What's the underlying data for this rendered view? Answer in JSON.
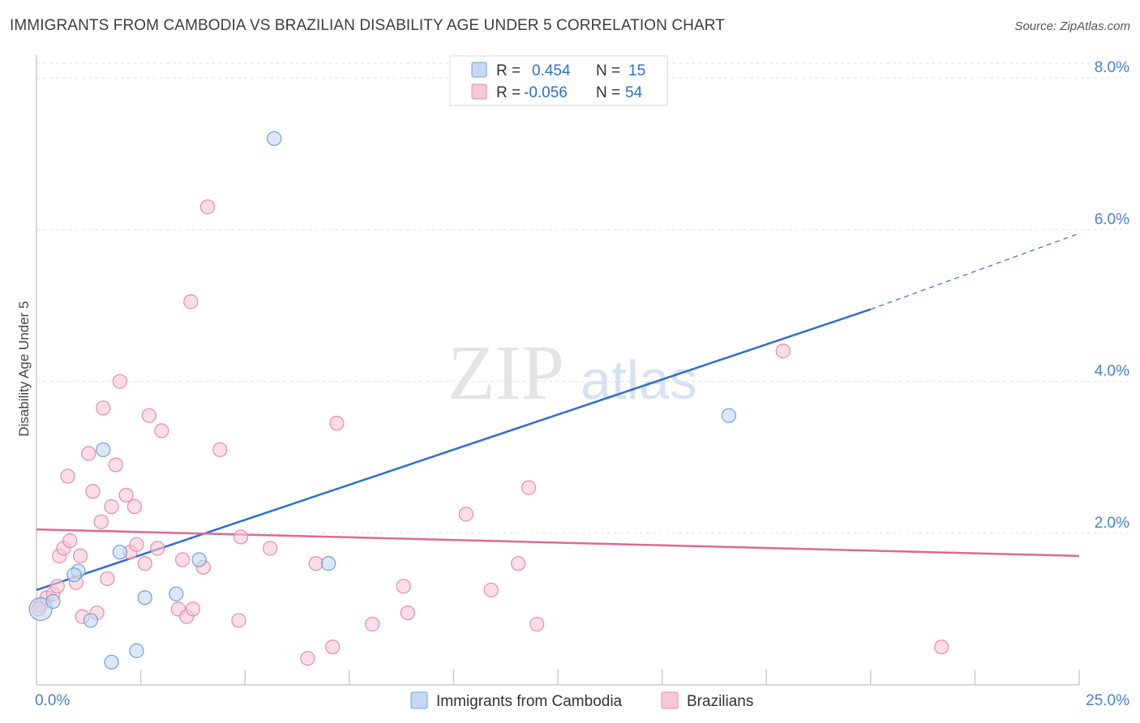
{
  "header": {
    "title": "IMMIGRANTS FROM CAMBODIA VS BRAZILIAN DISABILITY AGE UNDER 5 CORRELATION CHART",
    "source": "Source: ZipAtlas.com"
  },
  "watermark": {
    "zip": "ZIP",
    "atlas": "atlas"
  },
  "stats": {
    "r_label": "R =",
    "n_label": "N =",
    "rows": [
      {
        "r": "0.454",
        "n": "15"
      },
      {
        "r": "-0.056",
        "n": "54"
      }
    ]
  },
  "chart_data": {
    "type": "scatter",
    "title": "IMMIGRANTS FROM CAMBODIA VS BRAZILIAN DISABILITY AGE UNDER 5 CORRELATION CHART",
    "ylabel": "Disability Age Under 5",
    "xlabel": "",
    "xlim": [
      0,
      25
    ],
    "ylim": [
      0,
      8.3
    ],
    "x_tick_labels": [
      {
        "value": 0,
        "label": "0.0%"
      },
      {
        "value": 25,
        "label": "25.0%"
      }
    ],
    "y_ticks": [
      {
        "value": 2,
        "label": "2.0%"
      },
      {
        "value": 4,
        "label": "4.0%"
      },
      {
        "value": 6,
        "label": "6.0%"
      },
      {
        "value": 8,
        "label": "8.0%"
      }
    ],
    "x_minor_ticks": [
      2.5,
      5,
      7.5,
      10,
      12.5,
      15,
      17.5,
      20,
      22.5,
      25
    ],
    "series": [
      {
        "name": "Immigrants from Cambodia",
        "color": "#6fa0dc",
        "fill": "#c5d9f2",
        "points": [
          [
            0.1,
            1.0
          ],
          [
            0.4,
            1.1
          ],
          [
            1.0,
            1.5
          ],
          [
            0.9,
            1.45
          ],
          [
            1.3,
            0.85
          ],
          [
            1.6,
            3.1
          ],
          [
            2.0,
            1.75
          ],
          [
            2.6,
            1.15
          ],
          [
            3.35,
            1.2
          ],
          [
            2.4,
            0.45
          ],
          [
            1.8,
            0.3
          ],
          [
            3.9,
            1.65
          ],
          [
            5.7,
            7.2
          ],
          [
            7.0,
            1.6
          ],
          [
            16.6,
            3.55
          ]
        ],
        "trend": {
          "x0": 0,
          "y0": 1.25,
          "x1": 20,
          "y1": 4.95,
          "dash_to_x": 25,
          "dash_to_y": 5.95,
          "color": "#2c6fd0"
        }
      },
      {
        "name": "Brazilians",
        "color": "#e88aa8",
        "fill": "#f8c8d8",
        "points": [
          [
            0.1,
            1.05
          ],
          [
            0.25,
            1.15
          ],
          [
            0.4,
            1.2
          ],
          [
            0.5,
            1.3
          ],
          [
            0.55,
            1.7
          ],
          [
            0.65,
            1.8
          ],
          [
            0.75,
            2.75
          ],
          [
            0.8,
            1.9
          ],
          [
            0.95,
            1.35
          ],
          [
            1.05,
            1.7
          ],
          [
            1.1,
            0.9
          ],
          [
            1.25,
            3.05
          ],
          [
            1.35,
            2.55
          ],
          [
            1.45,
            0.95
          ],
          [
            1.55,
            2.15
          ],
          [
            1.6,
            3.65
          ],
          [
            1.7,
            1.4
          ],
          [
            1.8,
            2.35
          ],
          [
            1.9,
            2.9
          ],
          [
            2.0,
            4.0
          ],
          [
            2.15,
            2.5
          ],
          [
            2.25,
            1.75
          ],
          [
            2.35,
            2.35
          ],
          [
            2.4,
            1.85
          ],
          [
            2.6,
            1.6
          ],
          [
            2.7,
            3.55
          ],
          [
            2.9,
            1.8
          ],
          [
            3.0,
            3.35
          ],
          [
            3.4,
            1.0
          ],
          [
            3.5,
            1.65
          ],
          [
            3.6,
            0.9
          ],
          [
            3.7,
            5.05
          ],
          [
            3.75,
            1.0
          ],
          [
            4.0,
            1.55
          ],
          [
            4.1,
            6.3
          ],
          [
            4.4,
            3.1
          ],
          [
            4.85,
            0.85
          ],
          [
            4.9,
            1.95
          ],
          [
            5.6,
            1.8
          ],
          [
            6.5,
            0.35
          ],
          [
            6.7,
            1.6
          ],
          [
            7.1,
            0.5
          ],
          [
            7.2,
            3.45
          ],
          [
            8.05,
            0.8
          ],
          [
            8.8,
            1.3
          ],
          [
            8.9,
            0.95
          ],
          [
            10.3,
            2.25
          ],
          [
            10.9,
            1.25
          ],
          [
            11.55,
            1.6
          ],
          [
            11.8,
            2.6
          ],
          [
            12.0,
            0.8
          ],
          [
            17.9,
            4.4
          ],
          [
            21.7,
            0.5
          ],
          [
            0.05,
            1.0
          ]
        ],
        "trend": {
          "x0": 0,
          "y0": 2.05,
          "x1": 25,
          "y1": 1.7,
          "color": "#e06890"
        }
      }
    ]
  }
}
